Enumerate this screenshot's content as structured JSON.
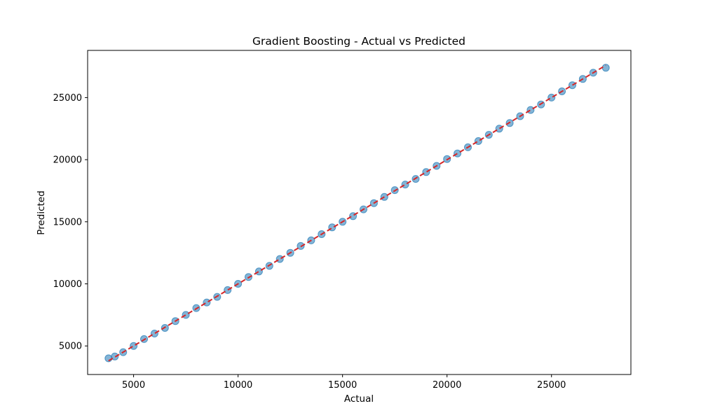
{
  "chart_data": {
    "type": "scatter",
    "title": "Gradient Boosting - Actual vs Predicted",
    "xlabel": "Actual",
    "ylabel": "Predicted",
    "xlim": [
      2800,
      28800
    ],
    "ylim": [
      2700,
      28800
    ],
    "xticks": [
      5000,
      10000,
      15000,
      20000,
      25000
    ],
    "yticks": [
      5000,
      10000,
      15000,
      20000,
      25000
    ],
    "grid": false,
    "colors": {
      "points": "#1f77b4",
      "reference_line": "#d62728"
    },
    "series": [
      {
        "kind": "points",
        "x": [
          3800,
          4100,
          4500,
          5000,
          5500,
          6000,
          6500,
          7000,
          7500,
          8000,
          8500,
          9000,
          9500,
          10000,
          10500,
          11000,
          11500,
          12000,
          12500,
          13000,
          13500,
          14000,
          14500,
          15000,
          15500,
          16000,
          16500,
          17000,
          17500,
          18000,
          18500,
          19000,
          19500,
          20000,
          20500,
          21000,
          21500,
          22000,
          22500,
          23000,
          23500,
          24000,
          24500,
          25000,
          25500,
          26000,
          26500,
          27000,
          27600
        ],
        "y": [
          4000,
          4150,
          4500,
          5000,
          5550,
          6000,
          6450,
          7000,
          7500,
          8050,
          8500,
          8950,
          9500,
          10000,
          10550,
          11000,
          11450,
          12000,
          12500,
          13050,
          13500,
          14000,
          14550,
          15000,
          15450,
          16000,
          16500,
          17000,
          17550,
          18000,
          18450,
          19000,
          19500,
          20050,
          20500,
          21000,
          21500,
          22000,
          22500,
          22950,
          23500,
          24000,
          24450,
          25000,
          25500,
          26000,
          26500,
          27000,
          27400
        ]
      },
      {
        "kind": "reference_line",
        "x": [
          3800,
          27600
        ],
        "y": [
          3800,
          27600
        ]
      }
    ]
  }
}
